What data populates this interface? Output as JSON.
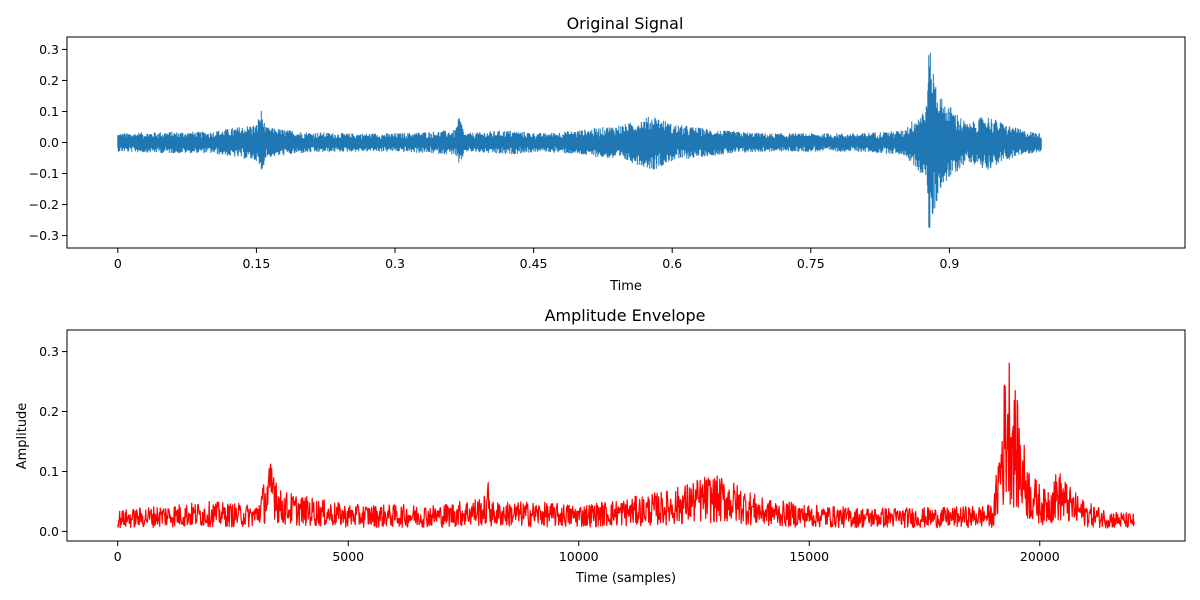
{
  "colors": {
    "signal": "#1f77b4",
    "envelope": "#ff0000",
    "axes": "#000000",
    "background": "#ffffff"
  },
  "chart_data": [
    {
      "type": "line",
      "title": "Original Signal",
      "xlabel": "Time",
      "ylabel": "",
      "xlim": [
        -0.055,
        1.155
      ],
      "ylim": [
        -0.34,
        0.34
      ],
      "xticks": [
        0,
        0.15,
        0.3,
        0.45,
        0.6,
        0.75,
        0.9
      ],
      "xtick_labels": [
        "0",
        "0.15",
        "0.3",
        "0.45",
        "0.6",
        "0.75",
        "0.9"
      ],
      "yticks": [
        -0.3,
        -0.2,
        -0.1,
        0.0,
        0.1,
        0.2,
        0.3
      ],
      "ytick_labels": [
        "−0.3",
        "−0.2",
        "−0.1",
        "0.0",
        "0.1",
        "0.2",
        "0.3"
      ],
      "grid": false,
      "series": [
        {
          "color": "#1f77b4",
          "x_range": [
            0,
            1.0
          ],
          "envelope_peaks": [
            [
              0.0,
              0.03
            ],
            [
              0.05,
              0.035
            ],
            [
              0.1,
              0.035
            ],
            [
              0.15,
              0.06
            ],
            [
              0.155,
              0.11
            ],
            [
              0.16,
              0.05
            ],
            [
              0.2,
              0.035
            ],
            [
              0.25,
              0.03
            ],
            [
              0.3,
              0.03
            ],
            [
              0.365,
              0.04
            ],
            [
              0.37,
              0.09
            ],
            [
              0.375,
              0.03
            ],
            [
              0.42,
              0.04
            ],
            [
              0.46,
              0.03
            ],
            [
              0.5,
              0.04
            ],
            [
              0.55,
              0.06
            ],
            [
              0.58,
              0.09
            ],
            [
              0.6,
              0.06
            ],
            [
              0.65,
              0.04
            ],
            [
              0.7,
              0.03
            ],
            [
              0.75,
              0.03
            ],
            [
              0.8,
              0.03
            ],
            [
              0.85,
              0.04
            ],
            [
              0.875,
              0.12
            ],
            [
              0.878,
              0.31
            ],
            [
              0.882,
              0.25
            ],
            [
              0.89,
              0.15
            ],
            [
              0.9,
              0.12
            ],
            [
              0.92,
              0.06
            ],
            [
              0.94,
              0.09
            ],
            [
              0.96,
              0.06
            ],
            [
              0.98,
              0.04
            ],
            [
              1.0,
              0.03
            ]
          ]
        }
      ]
    },
    {
      "type": "line",
      "title": "Amplitude Envelope",
      "xlabel": "Time (samples)",
      "ylabel": "Amplitude",
      "xlim": [
        -1100,
        23150
      ],
      "ylim": [
        -0.016,
        0.336
      ],
      "xticks": [
        0,
        5000,
        10000,
        15000,
        20000
      ],
      "xtick_labels": [
        "0",
        "5000",
        "10000",
        "15000",
        "20000"
      ],
      "yticks": [
        0.0,
        0.1,
        0.2,
        0.3
      ],
      "ytick_labels": [
        "0.0",
        "0.1",
        "0.2",
        "0.3"
      ],
      "grid": false,
      "series": [
        {
          "color": "#ff0000",
          "x_range": [
            0,
            22050
          ],
          "envelope_peaks": [
            [
              0,
              0.035
            ],
            [
              1000,
              0.045
            ],
            [
              2000,
              0.05
            ],
            [
              3000,
              0.045
            ],
            [
              3400,
              0.135
            ],
            [
              3500,
              0.07
            ],
            [
              4000,
              0.06
            ],
            [
              5000,
              0.045
            ],
            [
              6000,
              0.045
            ],
            [
              7000,
              0.045
            ],
            [
              8000,
              0.06
            ],
            [
              8050,
              0.095
            ],
            [
              8100,
              0.05
            ],
            [
              9000,
              0.05
            ],
            [
              10000,
              0.045
            ],
            [
              11000,
              0.055
            ],
            [
              12000,
              0.07
            ],
            [
              12800,
              0.095
            ],
            [
              13200,
              0.09
            ],
            [
              14000,
              0.055
            ],
            [
              15000,
              0.045
            ],
            [
              16000,
              0.04
            ],
            [
              17000,
              0.04
            ],
            [
              18000,
              0.04
            ],
            [
              19000,
              0.045
            ],
            [
              19300,
              0.32
            ],
            [
              19400,
              0.28
            ],
            [
              19600,
              0.17
            ],
            [
              19800,
              0.1
            ],
            [
              20100,
              0.07
            ],
            [
              20400,
              0.105
            ],
            [
              20700,
              0.07
            ],
            [
              21000,
              0.05
            ],
            [
              21500,
              0.035
            ],
            [
              22050,
              0.03
            ]
          ]
        }
      ]
    }
  ]
}
